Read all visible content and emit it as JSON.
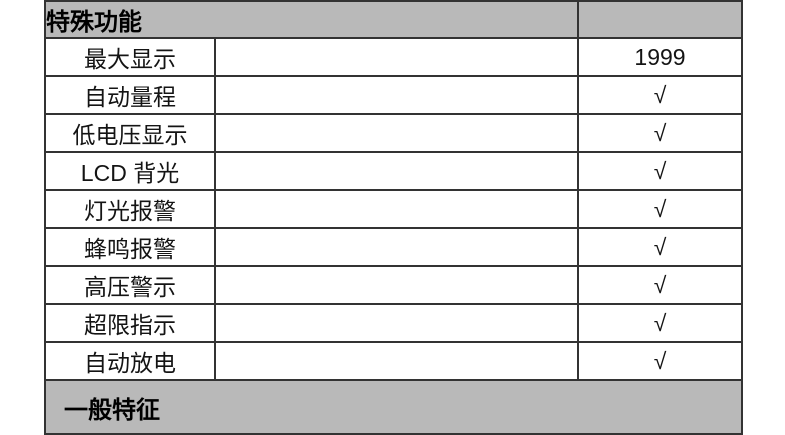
{
  "colors": {
    "cell_gray": "#b9b9b9",
    "border_dark": "#333333",
    "text_dark": "#141414",
    "page_bg": "#ffffff"
  },
  "spec_table": {
    "section_header": {
      "title": "特殊功能"
    },
    "rows": [
      {
        "label": "最大显示",
        "detail": "",
        "value": "1999"
      },
      {
        "label": "自动量程",
        "detail": "",
        "value": "√"
      },
      {
        "label": "低电压显示",
        "detail": "",
        "value": "√"
      },
      {
        "label": "LCD 背光",
        "detail": "",
        "value": "√"
      },
      {
        "label": "灯光报警",
        "detail": "",
        "value": "√"
      },
      {
        "label": "蜂鸣报警",
        "detail": "",
        "value": "√"
      },
      {
        "label": "高压警示",
        "detail": "",
        "value": "√"
      },
      {
        "label": "超限指示",
        "detail": "",
        "value": "√"
      },
      {
        "label": "自动放电",
        "detail": "",
        "value": "√"
      }
    ],
    "section_footer": {
      "title": "一般特征"
    }
  }
}
